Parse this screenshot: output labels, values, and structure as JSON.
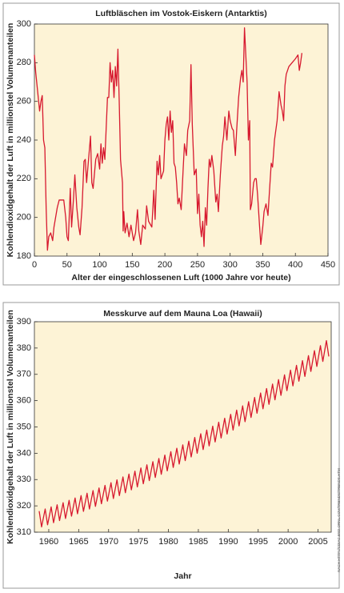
{
  "chart_data": [
    {
      "type": "line",
      "title": "Luftbläschen im Vostok-Eiskern (Antarktis)",
      "xlabel": "Alter der eingeschlossenen Luft (1000 Jahre vor heute)",
      "ylabel": "Kohlendioxidgehalt der Luft in millionstel Volumenanteilen",
      "xlim": [
        0,
        450
      ],
      "ylim": [
        180,
        300
      ],
      "xticks": [
        0,
        50,
        100,
        150,
        200,
        250,
        300,
        350,
        400,
        450
      ],
      "yticks": [
        180,
        200,
        220,
        240,
        260,
        280,
        300
      ],
      "color": "#d7192f",
      "grid": false,
      "x": [
        0,
        2,
        5,
        8,
        10,
        12,
        14,
        16,
        18,
        20,
        22,
        25,
        28,
        30,
        35,
        38,
        45,
        48,
        50,
        52,
        55,
        57,
        60,
        62,
        65,
        68,
        70,
        73,
        76,
        78,
        80,
        84,
        86,
        88,
        90,
        94,
        97,
        100,
        102,
        104,
        106,
        108,
        110,
        112,
        114,
        116,
        118,
        120,
        122,
        124,
        126,
        128,
        130,
        132,
        135,
        136,
        137,
        139,
        142,
        145,
        148,
        152,
        155,
        158,
        160,
        163,
        166,
        170,
        172,
        175,
        180,
        183,
        185,
        188,
        190,
        192,
        194,
        198,
        200,
        202,
        204,
        206,
        208,
        210,
        212,
        214,
        216,
        218,
        220,
        222,
        225,
        228,
        230,
        233,
        235,
        238,
        240,
        242,
        245,
        248,
        250,
        252,
        254,
        256,
        258,
        260,
        262,
        264,
        266,
        268,
        270,
        272,
        275,
        278,
        280,
        282,
        285,
        288,
        290,
        292,
        295,
        298,
        300,
        303,
        305,
        308,
        310,
        313,
        316,
        318,
        320,
        322,
        324,
        326,
        328,
        330,
        331,
        333,
        336,
        338,
        340,
        342,
        345,
        347,
        350,
        352,
        355,
        358,
        360,
        363,
        365,
        368,
        372,
        375,
        378,
        380,
        382,
        384,
        386,
        390,
        395,
        400,
        404,
        406,
        408,
        410
      ],
      "values": [
        284,
        275,
        265,
        255,
        260,
        263,
        240,
        236,
        205,
        183,
        190,
        192,
        188,
        195,
        205,
        209,
        209,
        200,
        190,
        188,
        215,
        195,
        210,
        222,
        205,
        195,
        191,
        205,
        229,
        230,
        218,
        234,
        242,
        218,
        215,
        230,
        233,
        225,
        238,
        228,
        236,
        230,
        246,
        262,
        262,
        280,
        270,
        276,
        262,
        278,
        268,
        287,
        260,
        230,
        218,
        193,
        203,
        192,
        197,
        190,
        196,
        188,
        192,
        204,
        193,
        186,
        196,
        194,
        206,
        198,
        195,
        214,
        199,
        229,
        222,
        232,
        220,
        224,
        240,
        248,
        252,
        240,
        255,
        244,
        250,
        228,
        226,
        218,
        207,
        210,
        204,
        225,
        238,
        232,
        245,
        250,
        279,
        248,
        222,
        225,
        202,
        212,
        196,
        190,
        198,
        185,
        205,
        196,
        215,
        230,
        226,
        232,
        224,
        208,
        212,
        203,
        222,
        237,
        242,
        252,
        240,
        255,
        250,
        246,
        245,
        232,
        245,
        262,
        272,
        276,
        270,
        298,
        284,
        270,
        240,
        250,
        204,
        207,
        218,
        220,
        220,
        212,
        196,
        186,
        195,
        203,
        207,
        201,
        212,
        228,
        226,
        240,
        250,
        265,
        258,
        255,
        250,
        268,
        274,
        278,
        280,
        282,
        284,
        276,
        280,
        285
      ]
    },
    {
      "type": "line",
      "title": "Messkurve auf dem Mauna Loa (Hawaii)",
      "xlabel": "Jahr",
      "ylabel": "Kohlendioxidgehalt der Luft in millionstel Volumenanteilen",
      "annotation": "NACH HTTP://CDIAC.ESD.ORNL.GOV/TRENDS/TRENDS.HTM",
      "xlim": [
        1957.6,
        2007.2
      ],
      "ylim": [
        310,
        390
      ],
      "xticks": [
        1960,
        1965,
        1970,
        1975,
        1980,
        1985,
        1990,
        1995,
        2000,
        2005
      ],
      "yticks": [
        310,
        320,
        330,
        340,
        350,
        360,
        370,
        380,
        390
      ],
      "color": "#d7192f",
      "grid": false,
      "x": [
        1958.4,
        1958.8,
        1959.4,
        1959.8,
        1960.4,
        1960.8,
        1961.4,
        1961.8,
        1962.4,
        1962.8,
        1963.4,
        1963.8,
        1964.4,
        1964.8,
        1965.4,
        1965.8,
        1966.4,
        1966.8,
        1967.4,
        1967.8,
        1968.4,
        1968.8,
        1969.4,
        1969.8,
        1970.4,
        1970.8,
        1971.4,
        1971.8,
        1972.4,
        1972.8,
        1973.4,
        1973.8,
        1974.4,
        1974.8,
        1975.4,
        1975.8,
        1976.4,
        1976.8,
        1977.4,
        1977.8,
        1978.4,
        1978.8,
        1979.4,
        1979.8,
        1980.4,
        1980.8,
        1981.4,
        1981.8,
        1982.4,
        1982.8,
        1983.4,
        1983.8,
        1984.4,
        1984.8,
        1985.4,
        1985.8,
        1986.4,
        1986.8,
        1987.4,
        1987.8,
        1988.4,
        1988.8,
        1989.4,
        1989.8,
        1990.4,
        1990.8,
        1991.4,
        1991.8,
        1992.4,
        1992.8,
        1993.4,
        1993.8,
        1994.4,
        1994.8,
        1995.4,
        1995.8,
        1996.4,
        1996.8,
        1997.4,
        1997.8,
        1998.4,
        1998.8,
        1999.4,
        1999.8,
        2000.4,
        2000.8,
        2001.4,
        2001.8,
        2002.4,
        2002.8,
        2003.4,
        2003.8,
        2004.4,
        2004.8,
        2005.4,
        2005.8,
        2006.4,
        2006.8
      ],
      "values": [
        318.0,
        312.0,
        318.8,
        312.8,
        319.6,
        313.6,
        320.4,
        314.4,
        321.2,
        315.2,
        322.1,
        316.1,
        323.0,
        317.0,
        323.9,
        317.9,
        324.8,
        318.8,
        325.8,
        319.8,
        326.8,
        320.8,
        327.8,
        321.8,
        328.8,
        322.8,
        329.9,
        323.9,
        331.0,
        325.0,
        332.1,
        326.1,
        333.2,
        327.2,
        334.4,
        328.4,
        335.6,
        329.6,
        336.8,
        330.8,
        338.0,
        332.0,
        339.3,
        333.3,
        340.6,
        334.6,
        341.9,
        335.9,
        343.2,
        337.2,
        344.6,
        338.6,
        346.0,
        340.0,
        347.4,
        341.4,
        348.8,
        342.8,
        350.3,
        344.3,
        351.8,
        345.8,
        353.3,
        347.3,
        354.8,
        348.8,
        356.4,
        350.4,
        358.0,
        352.0,
        359.6,
        353.6,
        361.2,
        355.2,
        362.9,
        356.9,
        364.6,
        358.6,
        366.3,
        360.3,
        368.0,
        362.0,
        369.8,
        363.8,
        371.6,
        365.6,
        373.4,
        367.4,
        375.2,
        369.2,
        377.1,
        371.1,
        379.0,
        373.0,
        380.9,
        374.9,
        382.8,
        376.8
      ]
    }
  ]
}
